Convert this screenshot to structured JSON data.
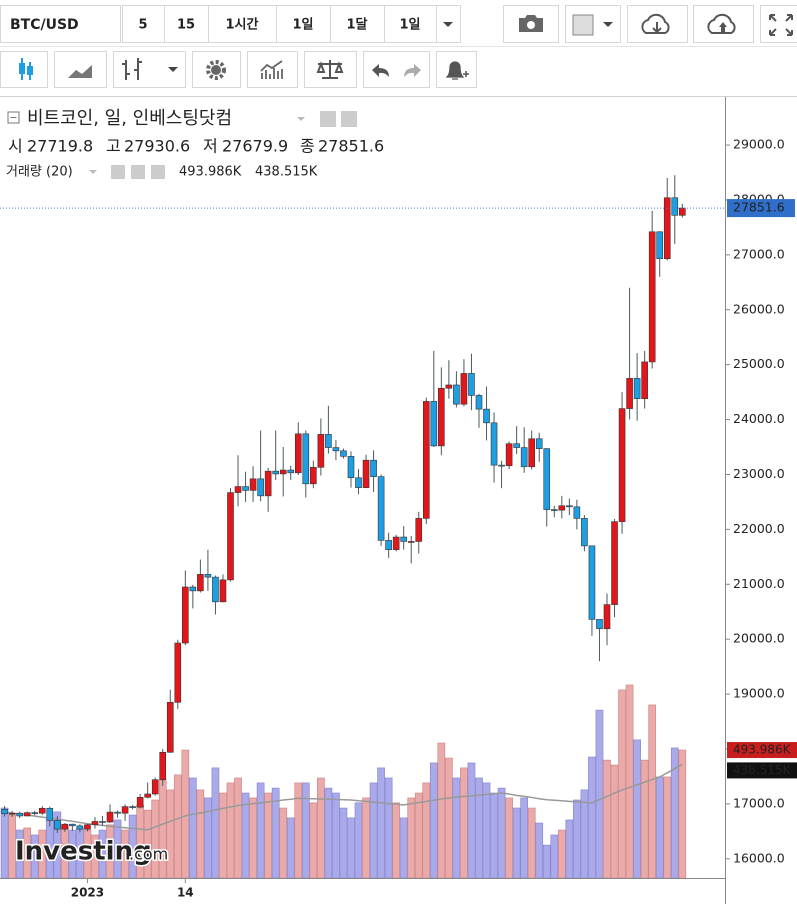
{
  "toolbar": {
    "symbol": "BTC/USD",
    "intervals": [
      "5",
      "15",
      "1시간",
      "1일",
      "1달",
      "1일"
    ]
  },
  "chart_data": {
    "type": "candlestick",
    "title": "비트코인, 일, 인베스팅닷컴",
    "ohlc_labels": [
      "시",
      "고",
      "저",
      "종"
    ],
    "watermark": "Investing",
    "watermark_suffix": ".com",
    "categories": [
      null,
      null,
      null,
      null,
      null,
      null,
      null,
      null,
      null,
      null,
      null,
      "2023",
      null,
      null,
      null,
      null,
      null,
      null,
      null,
      null,
      null,
      null,
      null,
      null,
      "14",
      null,
      null,
      null,
      null,
      null,
      null,
      null,
      null,
      null,
      null,
      null,
      null,
      null,
      null,
      null,
      null,
      null,
      null,
      null,
      null,
      null,
      null,
      null,
      null,
      null,
      null,
      null,
      null,
      null,
      null,
      null,
      null,
      null,
      null,
      null,
      null,
      null,
      null,
      null,
      null,
      null,
      null,
      null,
      null,
      null,
      null,
      null,
      null,
      null,
      null,
      null,
      null,
      null,
      null,
      null,
      null,
      null,
      null,
      null,
      null,
      null,
      null,
      null,
      null,
      null,
      null
    ],
    "open": [
      16900,
      16820,
      16830,
      16780,
      16840,
      16830,
      16920,
      16700,
      16540,
      16630,
      16600,
      16540,
      16620,
      16680,
      16670,
      16850,
      16830,
      16950,
      16940,
      17120,
      17180,
      17440,
      17940,
      18850,
      19930,
      20950,
      20880,
      21180,
      21130,
      20680,
      21080,
      22670,
      22780,
      22710,
      22920,
      22610,
      23060,
      23010,
      23080,
      23030,
      23740,
      22830,
      23130,
      23730,
      23490,
      23430,
      23330,
      22940,
      22760,
      23260,
      22960,
      21800,
      21630,
      21860,
      21780,
      21780,
      22200,
      24330,
      23520,
      24570,
      24630,
      24280,
      24840,
      24440,
      24190,
      23940,
      23170,
      23160,
      23560,
      23490,
      23140,
      23650,
      23470,
      22360,
      22350,
      22430,
      22410,
      22200,
      21700,
      20360,
      20190,
      20630,
      22140,
      24200,
      24750,
      24380,
      25050,
      27420,
      26930,
      28040,
      27719.8
    ],
    "high": [
      16960,
      16870,
      16860,
      16860,
      16870,
      16960,
      16950,
      16780,
      16650,
      16640,
      16630,
      16630,
      16760,
      16780,
      16990,
      16880,
      16990,
      16980,
      17180,
      17390,
      17480,
      18000,
      19080,
      19990,
      21250,
      20990,
      21450,
      21630,
      21160,
      21180,
      22750,
      23350,
      23050,
      23150,
      23800,
      23120,
      23800,
      23500,
      23160,
      23950,
      23800,
      23250,
      24020,
      24250,
      23630,
      23470,
      23420,
      23100,
      23360,
      23440,
      23000,
      21940,
      21900,
      22060,
      21880,
      22320,
      24400,
      25250,
      24950,
      25080,
      24880,
      25100,
      25200,
      24470,
      24600,
      24130,
      23250,
      23600,
      23880,
      23860,
      23800,
      23760,
      23480,
      22430,
      22610,
      22560,
      22540,
      22260,
      21700,
      20360,
      20830,
      22190,
      24500,
      26400,
      25210,
      25250,
      27800,
      27430,
      28400,
      28450,
      27930.6
    ],
    "low": [
      16770,
      16760,
      16740,
      16770,
      16790,
      16800,
      16590,
      16470,
      16490,
      16510,
      16480,
      16500,
      16550,
      16600,
      16650,
      16750,
      16690,
      16900,
      16920,
      17100,
      17150,
      17330,
      17930,
      18730,
      19890,
      20560,
      20850,
      20880,
      20450,
      20670,
      21050,
      22420,
      22500,
      22500,
      22510,
      22320,
      22900,
      22600,
      22900,
      22990,
      22580,
      22750,
      22980,
      23380,
      23260,
      23290,
      22760,
      22640,
      22750,
      22680,
      21700,
      21480,
      21600,
      21630,
      21380,
      21560,
      22100,
      23500,
      23350,
      24380,
      24220,
      24240,
      24170,
      23850,
      23620,
      22850,
      22750,
      23100,
      23370,
      23030,
      23090,
      23230,
      22050,
      22220,
      22200,
      22260,
      22000,
      21600,
      20060,
      19600,
      19890,
      20400,
      21920,
      24000,
      23980,
      24200,
      24930,
      26600,
      26900,
      27200,
      27679.9
    ],
    "close": [
      16820,
      16830,
      16780,
      16840,
      16830,
      16920,
      16700,
      16540,
      16630,
      16600,
      16540,
      16620,
      16680,
      16670,
      16850,
      16830,
      16950,
      16940,
      17120,
      17180,
      17440,
      17940,
      18850,
      19930,
      20950,
      20880,
      21180,
      21130,
      20680,
      21080,
      22670,
      22780,
      22710,
      22920,
      22610,
      23060,
      23010,
      23080,
      23030,
      23740,
      22830,
      23130,
      23730,
      23490,
      23430,
      23330,
      22940,
      22760,
      23260,
      22960,
      21800,
      21630,
      21860,
      21780,
      21780,
      22200,
      24330,
      23520,
      24570,
      24630,
      24280,
      24840,
      24440,
      24190,
      23940,
      23170,
      23160,
      23560,
      23490,
      23140,
      23650,
      23470,
      22360,
      22350,
      22430,
      22410,
      22200,
      21700,
      20360,
      20190,
      20630,
      22140,
      24200,
      24750,
      24380,
      25050,
      27420,
      26930,
      28040,
      27719.8,
      27851.6
    ],
    "up_color": "#e3161b",
    "down_color": "#1e9ee3",
    "ylim": [
      15650,
      29875
    ],
    "yticks": [
      {
        "value": 16000,
        "label": "16000.0"
      },
      {
        "value": 17000,
        "label": "17000.0"
      },
      {
        "value": 18000,
        "label": "18000.0"
      },
      {
        "value": 19000,
        "label": "19000.0"
      },
      {
        "value": 20000,
        "label": "20000.0"
      },
      {
        "value": 21000,
        "label": "21000.0"
      },
      {
        "value": 22000,
        "label": "22000.0"
      },
      {
        "value": 23000,
        "label": "23000.0"
      },
      {
        "value": 24000,
        "label": "24000.0"
      },
      {
        "value": 25000,
        "label": "25000.0"
      },
      {
        "value": 26000,
        "label": "26000.0"
      },
      {
        "value": 27000,
        "label": "27000.0"
      },
      {
        "value": 28000,
        "label": "28000.0"
      },
      {
        "value": 29000,
        "label": "29000.0"
      }
    ],
    "grid": false,
    "y2lim": [
      0,
      3015
    ],
    "volume": {
      "name": "거래량 (20)",
      "axis": "y2",
      "up_color": "#eaaaaa",
      "down_color": "#aaaaea",
      "values": [
        270,
        243,
        185,
        193,
        166,
        185,
        224,
        255,
        201,
        185,
        193,
        185,
        166,
        185,
        205,
        224,
        185,
        243,
        282,
        262,
        301,
        378,
        340,
        398,
        494,
        386,
        340,
        309,
        425,
        328,
        367,
        386,
        328,
        309,
        367,
        328,
        347,
        270,
        232,
        367,
        367,
        290,
        386,
        347,
        328,
        270,
        232,
        290,
        309,
        367,
        425,
        386,
        290,
        232,
        309,
        328,
        367,
        444,
        521,
        463,
        386,
        425,
        444,
        386,
        367,
        328,
        347,
        309,
        270,
        309,
        270,
        212,
        127,
        166,
        185,
        224,
        301,
        340,
        467,
        648,
        455,
        436,
        726,
        745,
        533,
        455,
        668,
        390,
        390,
        502,
        493.986
      ],
      "value_labels": [
        null,
        null,
        null,
        null,
        null,
        null,
        null,
        null,
        null,
        null,
        null,
        null,
        null,
        null,
        null,
        null,
        null,
        null,
        null,
        null,
        null,
        null,
        null,
        null,
        null,
        null,
        null,
        null,
        null,
        null,
        null,
        null,
        null,
        null,
        null,
        null,
        null,
        null,
        null,
        null,
        null,
        null,
        null,
        null,
        null,
        null,
        null,
        null,
        null,
        null,
        null,
        null,
        null,
        null,
        null,
        null,
        null,
        null,
        null,
        null,
        null,
        null,
        null,
        null,
        null,
        null,
        null,
        null,
        null,
        null,
        null,
        null,
        null,
        null,
        null,
        null,
        null,
        null,
        null,
        null,
        null,
        null,
        null,
        null,
        null,
        null,
        null,
        null,
        null,
        null,
        "493.986K"
      ]
    },
    "volume_ma": {
      "axis": "y2",
      "color": "#999999",
      "values": [
        255,
        251,
        247,
        243,
        239,
        235,
        231,
        227,
        223,
        219,
        214,
        210,
        206,
        203,
        200,
        197,
        194,
        191,
        189,
        186,
        197,
        208,
        219,
        229,
        240,
        246,
        251,
        257,
        263,
        269,
        274,
        280,
        283,
        287,
        290,
        294,
        297,
        301,
        304,
        308,
        307,
        306,
        305,
        304,
        303,
        302,
        301,
        298,
        296,
        293,
        290,
        287,
        285,
        282,
        287,
        291,
        296,
        300,
        305,
        309,
        312,
        315,
        317,
        320,
        323,
        325,
        328,
        324,
        319,
        315,
        311,
        306,
        302,
        300,
        298,
        296,
        294,
        292,
        290,
        303,
        315,
        328,
        340,
        350,
        360,
        370,
        380,
        390,
        406,
        422,
        438.515
      ],
      "value_labels": [
        null,
        null,
        null,
        null,
        null,
        null,
        null,
        null,
        null,
        null,
        null,
        null,
        null,
        null,
        null,
        null,
        null,
        null,
        null,
        null,
        null,
        null,
        null,
        null,
        null,
        null,
        null,
        null,
        null,
        null,
        null,
        null,
        null,
        null,
        null,
        null,
        null,
        null,
        null,
        null,
        null,
        null,
        null,
        null,
        null,
        null,
        null,
        null,
        null,
        null,
        null,
        null,
        null,
        null,
        null,
        null,
        null,
        null,
        null,
        null,
        null,
        null,
        null,
        null,
        null,
        null,
        null,
        null,
        null,
        null,
        null,
        null,
        null,
        null,
        null,
        null,
        null,
        null,
        null,
        null,
        null,
        null,
        null,
        null,
        null,
        null,
        null,
        null,
        null,
        null,
        "438.515K"
      ]
    }
  }
}
